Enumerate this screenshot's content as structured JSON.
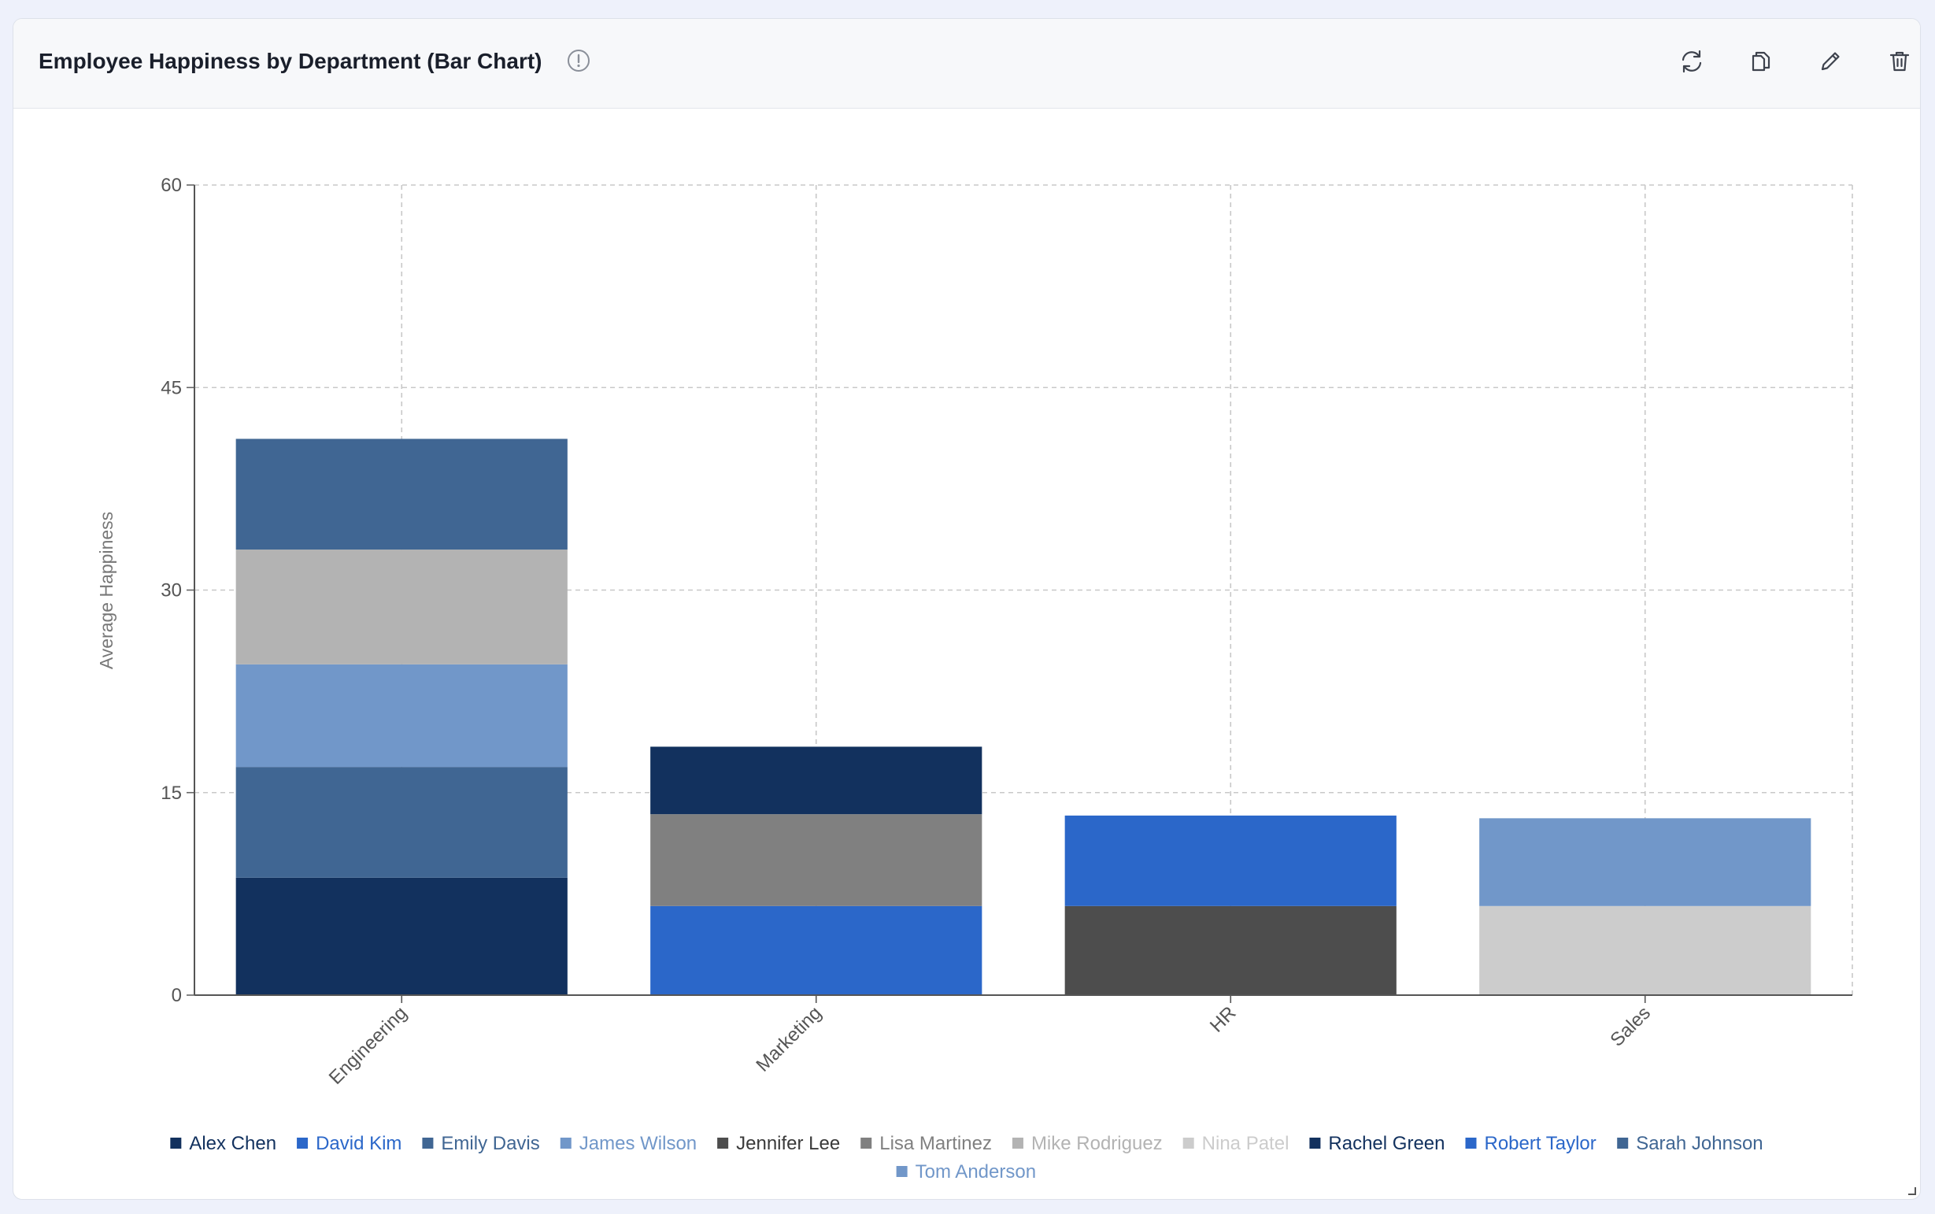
{
  "card": {
    "title": "Employee Happiness by Department (Bar Chart)",
    "icons": {
      "info": "info-circle-icon",
      "refresh": "refresh-icon",
      "duplicate": "copy-icon",
      "edit": "pencil-icon",
      "delete": "trash-icon"
    }
  },
  "chart_data": {
    "type": "bar",
    "stacked": true,
    "title": "",
    "xlabel": "",
    "ylabel": "Average Happiness",
    "ylim": [
      0,
      60
    ],
    "yticks": [
      0,
      15,
      30,
      45,
      60
    ],
    "grid": true,
    "legend_position": "bottom",
    "categories": [
      "Engineering",
      "Marketing",
      "HR",
      "Sales"
    ],
    "series": [
      {
        "name": "Alex Chen",
        "color": "#12315e",
        "values": [
          8.7,
          0,
          0,
          0
        ]
      },
      {
        "name": "David Kim",
        "color": "#2b67c9",
        "values": [
          0,
          6.6,
          0,
          0
        ]
      },
      {
        "name": "Emily Davis",
        "color": "#406693",
        "values": [
          8.2,
          0,
          0,
          0
        ]
      },
      {
        "name": "James Wilson",
        "color": "#7197c9",
        "values": [
          7.6,
          0,
          0,
          0
        ]
      },
      {
        "name": "Jennifer Lee",
        "color": "#4d4d4d",
        "values": [
          0,
          0,
          6.6,
          0
        ]
      },
      {
        "name": "Lisa Martinez",
        "color": "#808080",
        "values": [
          0,
          6.8,
          0,
          0
        ]
      },
      {
        "name": "Mike Rodriguez",
        "color": "#b3b3b3",
        "values": [
          8.5,
          0,
          0,
          0
        ]
      },
      {
        "name": "Nina Patel",
        "color": "#cccccc",
        "values": [
          0,
          0,
          0,
          6.6
        ]
      },
      {
        "name": "Rachel Green",
        "color": "#12315e",
        "values": [
          0,
          5.0,
          0,
          0
        ]
      },
      {
        "name": "Robert Taylor",
        "color": "#2b67c9",
        "values": [
          0,
          0,
          6.7,
          0
        ]
      },
      {
        "name": "Sarah Johnson",
        "color": "#406693",
        "values": [
          8.2,
          0,
          0,
          0
        ]
      },
      {
        "name": "Tom Anderson",
        "color": "#7197c9",
        "values": [
          0,
          0,
          0,
          6.5
        ]
      }
    ]
  }
}
